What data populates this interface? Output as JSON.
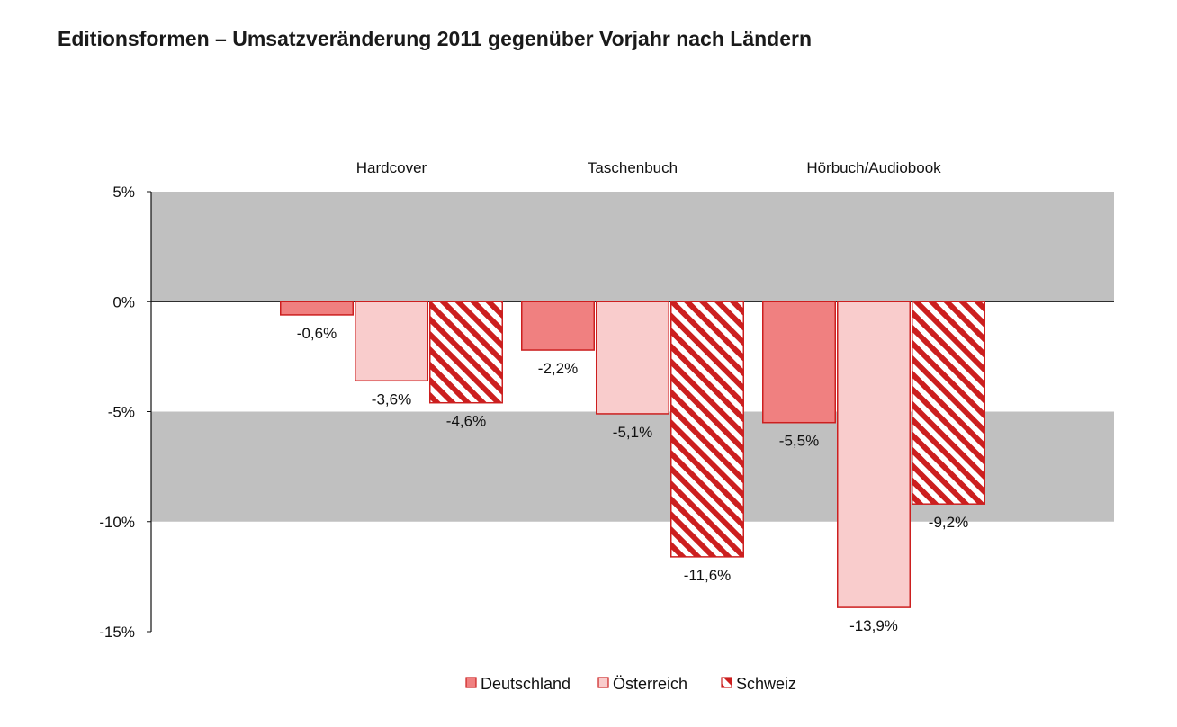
{
  "title": "Editionsformen – Umsatzveränderung 2011 gegenüber Vorjahr nach Ländern",
  "chart_data": {
    "type": "bar",
    "title": "Editionsformen – Umsatzveränderung 2011 gegenüber Vorjahr nach Ländern",
    "categories": [
      "Hardcover",
      "Taschenbuch",
      "Hörbuch/Audiobook"
    ],
    "series": [
      {
        "name": "Deutschland",
        "values": [
          -0.6,
          -2.2,
          -5.5
        ],
        "labels": [
          "-0,6%",
          "-2,2%",
          "-5,5%"
        ],
        "fill": "#f08080",
        "stroke": "#cc1f1f",
        "pattern": "solid"
      },
      {
        "name": "Österreich",
        "values": [
          -3.6,
          -5.1,
          -13.9
        ],
        "labels": [
          "-3,6%",
          "-5,1%",
          "-13,9%"
        ],
        "fill": "#f9cccc",
        "stroke": "#cc1f1f",
        "pattern": "solid"
      },
      {
        "name": "Schweiz",
        "values": [
          -4.6,
          -11.6,
          -9.2
        ],
        "labels": [
          "-4,6%",
          "-11,6%",
          "-9,2%"
        ],
        "fill": "#ffffff",
        "stroke": "#cc1f1f",
        "pattern": "diagonal-stripes"
      }
    ],
    "ylim": [
      -15,
      5
    ],
    "yticks": [
      5,
      0,
      -5,
      -10,
      -15
    ],
    "ytick_labels": [
      "5%",
      "0%",
      "-5%",
      "-10%",
      "-15%"
    ],
    "background_bands": [
      [
        0,
        5
      ],
      [
        -10,
        -5
      ]
    ],
    "band_color": "#c0c0c0",
    "legend_position": "bottom-center",
    "category_labels_position": "top",
    "xlabel": "",
    "ylabel": ""
  }
}
